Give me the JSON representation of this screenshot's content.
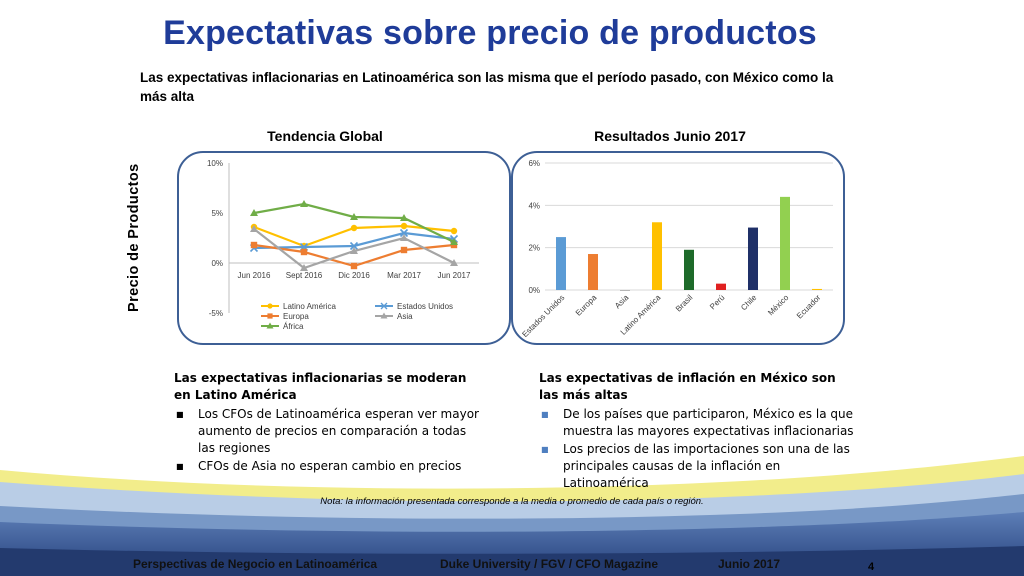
{
  "slide": {
    "title": "Expectativas sobre precio de productos",
    "subtitle": "Las expectativas inflacionarias en Latinoamérica son las misma que el período pasado, con México como la más alta",
    "vertical_label": "Precio de Productos",
    "left_panel_title": "Tendencia Global",
    "right_panel_title": "Resultados Junio 2017",
    "note": "Nota: la información presentada corresponde a la media o promedio de cada país o región.",
    "page_number": "4"
  },
  "left_text": {
    "heading": "Las expectativas inflacionarias se moderan en Latino América",
    "bullets": [
      "Los  CFOs de Latinoamérica esperan ver mayor aumento de precios en comparación a todas las regiones",
      "CFOs de Asia no esperan cambio en precios"
    ]
  },
  "right_text": {
    "heading": "Las expectativas de inflación en México son las más altas",
    "bullets": [
      "De los países que participaron, México es la que muestra las mayores expectativas inflacionarias",
      "Los precios de las importaciones son una de las principales causas de la inflación en Latinoamérica"
    ]
  },
  "footer": {
    "left": "Perspectivas de Negocio en Latinoamérica",
    "center": "Duke University / FGV / CFO Magazine",
    "right": "Junio 2017"
  },
  "colors": {
    "title": "#1f3c99",
    "panel_border": "#3d5f95"
  },
  "chart_data": [
    {
      "type": "line",
      "title": "Tendencia Global",
      "categories": [
        "Jun 2016",
        "Sept 2016",
        "Dic 2016",
        "Mar 2017",
        "Jun 2017"
      ],
      "yticks": [
        "10%",
        "5%",
        "0%",
        "-5%"
      ],
      "ylim": [
        -5,
        10
      ],
      "grid": false,
      "legend": "bottom",
      "series": [
        {
          "name": "Latino América",
          "color": "#ffc000",
          "marker": "circle",
          "values": [
            3.6,
            1.7,
            3.5,
            3.7,
            3.2
          ]
        },
        {
          "name": "Estados Unidos",
          "color": "#5b9bd5",
          "marker": "x",
          "values": [
            1.5,
            1.6,
            1.7,
            3.0,
            2.4
          ]
        },
        {
          "name": "Europa",
          "color": "#ed7d31",
          "marker": "square",
          "values": [
            1.8,
            1.1,
            -0.3,
            1.3,
            1.8
          ]
        },
        {
          "name": "Asia",
          "color": "#a5a5a5",
          "marker": "triangle",
          "values": [
            3.4,
            -0.5,
            1.2,
            2.5,
            0.0
          ]
        },
        {
          "name": "África",
          "color": "#70ad47",
          "marker": "triangle",
          "values": [
            5.0,
            5.9,
            4.6,
            4.5,
            2.1
          ]
        }
      ]
    },
    {
      "type": "bar",
      "title": "Resultados Junio 2017",
      "categories": [
        "Estados Unidos",
        "Europa",
        "Asia",
        "Latino América",
        "Brasil",
        "Perú",
        "Chile",
        "México",
        "Ecuador"
      ],
      "values": [
        2.5,
        1.7,
        0.0,
        3.2,
        1.9,
        0.3,
        2.95,
        4.4,
        0.05
      ],
      "colors": [
        "#5b9bd5",
        "#ed7d31",
        "#a5a5a5",
        "#ffc000",
        "#1e6b2a",
        "#e02020",
        "#1f3068",
        "#92d050",
        "#ffc000"
      ],
      "yticks": [
        "6%",
        "4%",
        "2%",
        "0%"
      ],
      "ylim": [
        0,
        6
      ],
      "grid": true
    }
  ]
}
